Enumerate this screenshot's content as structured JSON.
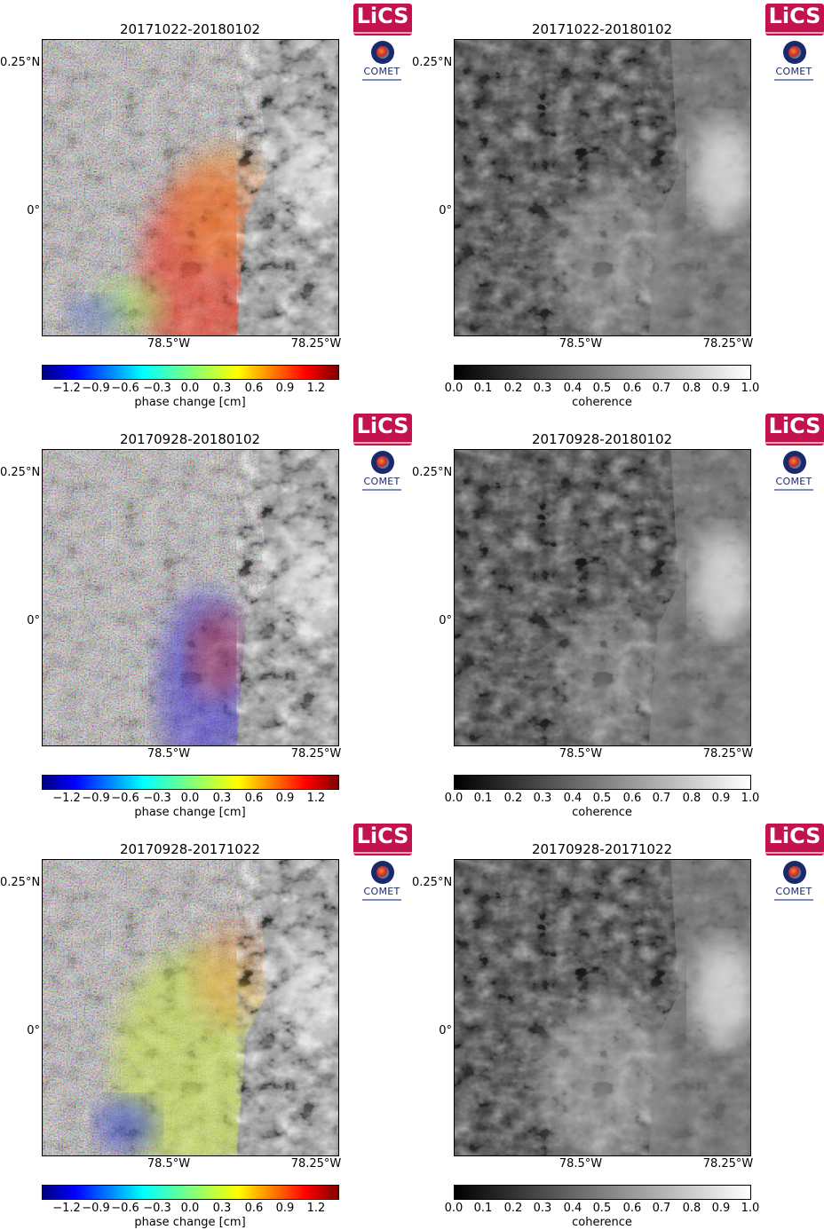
{
  "logos": {
    "lics_text": "LiCS",
    "comet_text": "COMET"
  },
  "lat_ticks": [
    "0.25°N",
    "0°"
  ],
  "lon_ticks": [
    "78.5°W",
    "78.25°W"
  ],
  "phase_colorbar": {
    "label": "phase change [cm]",
    "ticks": [
      "−1.2",
      "−0.9",
      "−0.6",
      "−0.3",
      "0.0",
      "0.3",
      "0.6",
      "0.9",
      "1.2"
    ]
  },
  "coherence_colorbar": {
    "label": "coherence",
    "ticks": [
      "0.0",
      "0.1",
      "0.2",
      "0.3",
      "0.4",
      "0.5",
      "0.6",
      "0.7",
      "0.8",
      "0.9",
      "1.0"
    ]
  },
  "rows": [
    {
      "phase_title": "20171022-20180102",
      "coherence_title": "20171022-20180102"
    },
    {
      "phase_title": "20170928-20180102",
      "coherence_title": "20170928-20180102"
    },
    {
      "phase_title": "20170928-20171022",
      "coherence_title": "20170928-20171022"
    }
  ],
  "colors": {
    "lics_brand": "#c2134e",
    "comet_brand": "#1b2a6b"
  }
}
